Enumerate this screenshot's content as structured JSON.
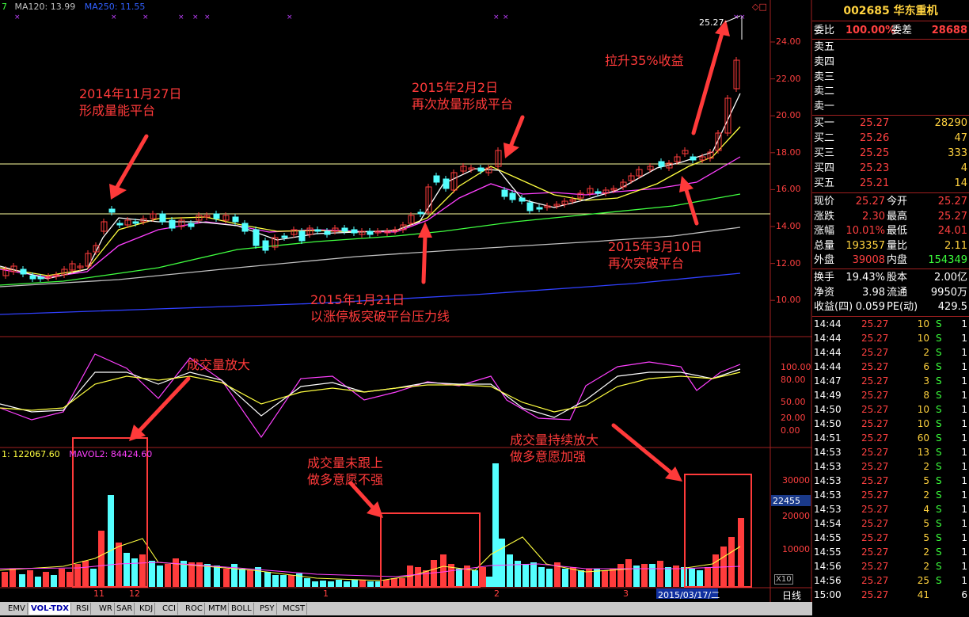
{
  "header": {
    "ma_top_prefix": "7",
    "ma120": "MA120: 13.99",
    "ma250": "MA250: 11.55",
    "vol_value": "1: 122067.60",
    "mavol2": "MAVOL2: 84424.60",
    "vol_mark": "22455",
    "x10": "X10",
    "period_label": "日线",
    "max_price_label": "25.27",
    "date_box": "2015/03/17/二"
  },
  "price_axis": [
    "24.00",
    "22.00",
    "20.00",
    "18.00",
    "16.00",
    "14.00",
    "12.00",
    "10.00"
  ],
  "kdj_axis": [
    "100.00",
    "80.00",
    "50.00",
    "20.00",
    "0.00"
  ],
  "vol_axis": [
    "30000",
    "20000",
    "10000"
  ],
  "x_ticks": [
    "11",
    "12",
    "1",
    "2",
    "3"
  ],
  "tabs": [
    "EMV",
    "VOL-TDX",
    "RSI",
    "WR",
    "SAR",
    "KDJ",
    "CCI",
    "ROC",
    "MTM",
    "BOLL",
    "PSY",
    "MCST"
  ],
  "tabs_active": "VOL-TDX",
  "annotations": {
    "a1_line1": "2014年11月27日",
    "a1_line2": "形成量能平台",
    "a2_line1": "2015年2月2日",
    "a2_line2": "再次放量形成平台",
    "a3": "拉升35%收益",
    "a4_line1": "2015年1月21日",
    "a4_line2": "以涨停板突破平台压力线",
    "a5_line1": "2015年3月10日",
    "a5_line2": "再次突破平台",
    "a6": "成交量放大",
    "a7_line1": "成交量未跟上",
    "a7_line2": "做多意愿不强",
    "a8_line1": "成交量持续放大",
    "a8_line2": "做多意愿加强"
  },
  "quote": {
    "title": "002685 华东重机",
    "weibi_label": "委比",
    "weibi_value": "100.00%",
    "weicha_label": "委差",
    "weicha_value": "28688",
    "sells": [
      {
        "label": "卖五",
        "price": "",
        "vol": ""
      },
      {
        "label": "卖四",
        "price": "",
        "vol": ""
      },
      {
        "label": "卖三",
        "price": "",
        "vol": ""
      },
      {
        "label": "卖二",
        "price": "",
        "vol": ""
      },
      {
        "label": "卖一",
        "price": "",
        "vol": ""
      }
    ],
    "buys": [
      {
        "label": "买一",
        "price": "25.27",
        "vol": "28290"
      },
      {
        "label": "买二",
        "price": "25.26",
        "vol": "47"
      },
      {
        "label": "买三",
        "price": "25.25",
        "vol": "333"
      },
      {
        "label": "买四",
        "price": "25.23",
        "vol": "4"
      },
      {
        "label": "买五",
        "price": "25.21",
        "vol": "14"
      }
    ],
    "stats": [
      {
        "l1": "现价",
        "v1": "25.27",
        "l2": "今开",
        "v2": "25.27",
        "c1": "#ff4040",
        "c2": "#ff4040"
      },
      {
        "l1": "涨跌",
        "v1": "2.30",
        "l2": "最高",
        "v2": "25.27",
        "c1": "#ff4040",
        "c2": "#ff4040"
      },
      {
        "l1": "涨幅",
        "v1": "10.01%",
        "l2": "最低",
        "v2": "24.01",
        "c1": "#ff4040",
        "c2": "#ff4040"
      },
      {
        "l1": "总量",
        "v1": "193357",
        "l2": "量比",
        "v2": "2.11",
        "c1": "#ffd23f",
        "c2": "#ffd23f"
      },
      {
        "l1": "外盘",
        "v1": "39008",
        "l2": "内盘",
        "v2": "154349",
        "c1": "#ff4040",
        "c2": "#3cff3c"
      }
    ],
    "stats2": [
      {
        "l1": "换手",
        "v1": "19.43%",
        "l2": "股本",
        "v2": "2.00亿"
      },
      {
        "l1": "净资",
        "v1": "3.98",
        "l2": "流通",
        "v2": "9950万"
      },
      {
        "l1": "收益(四)",
        "v1": "0.059",
        "l2": "PE(动)",
        "v2": "429.5"
      }
    ],
    "ticks": [
      {
        "t": "14:44",
        "p": "25.27",
        "v": "10",
        "s": "S",
        "n": "1"
      },
      {
        "t": "14:44",
        "p": "25.27",
        "v": "10",
        "s": "S",
        "n": "1"
      },
      {
        "t": "14:44",
        "p": "25.27",
        "v": "2",
        "s": "S",
        "n": "1"
      },
      {
        "t": "14:44",
        "p": "25.27",
        "v": "6",
        "s": "S",
        "n": "1"
      },
      {
        "t": "14:47",
        "p": "25.27",
        "v": "3",
        "s": "S",
        "n": "1"
      },
      {
        "t": "14:49",
        "p": "25.27",
        "v": "8",
        "s": "S",
        "n": "1"
      },
      {
        "t": "14:50",
        "p": "25.27",
        "v": "10",
        "s": "S",
        "n": "1"
      },
      {
        "t": "14:50",
        "p": "25.27",
        "v": "10",
        "s": "S",
        "n": "1"
      },
      {
        "t": "14:51",
        "p": "25.27",
        "v": "60",
        "s": "S",
        "n": "1"
      },
      {
        "t": "14:53",
        "p": "25.27",
        "v": "13",
        "s": "S",
        "n": "1"
      },
      {
        "t": "14:53",
        "p": "25.27",
        "v": "2",
        "s": "S",
        "n": "1"
      },
      {
        "t": "14:53",
        "p": "25.27",
        "v": "5",
        "s": "S",
        "n": "1"
      },
      {
        "t": "14:53",
        "p": "25.27",
        "v": "2",
        "s": "S",
        "n": "1"
      },
      {
        "t": "14:53",
        "p": "25.27",
        "v": "4",
        "s": "S",
        "n": "1"
      },
      {
        "t": "14:54",
        "p": "25.27",
        "v": "5",
        "s": "S",
        "n": "1"
      },
      {
        "t": "14:55",
        "p": "25.27",
        "v": "5",
        "s": "S",
        "n": "1"
      },
      {
        "t": "14:55",
        "p": "25.27",
        "v": "2",
        "s": "S",
        "n": "1"
      },
      {
        "t": "14:56",
        "p": "25.27",
        "v": "2",
        "s": "S",
        "n": "1"
      },
      {
        "t": "14:56",
        "p": "25.27",
        "v": "25",
        "s": "S",
        "n": "1"
      },
      {
        "t": "15:00",
        "p": "25.27",
        "v": "41",
        "s": "",
        "n": "6"
      }
    ]
  },
  "colors": {
    "up": "#ff3c3c",
    "down": "#54ffff",
    "ma5": "#ffffff",
    "ma10": "#ffff40",
    "ma20": "#ff40ff",
    "ma60": "#40ff40",
    "ma120": "#c0c0c0",
    "ma250": "#3040ff"
  }
}
